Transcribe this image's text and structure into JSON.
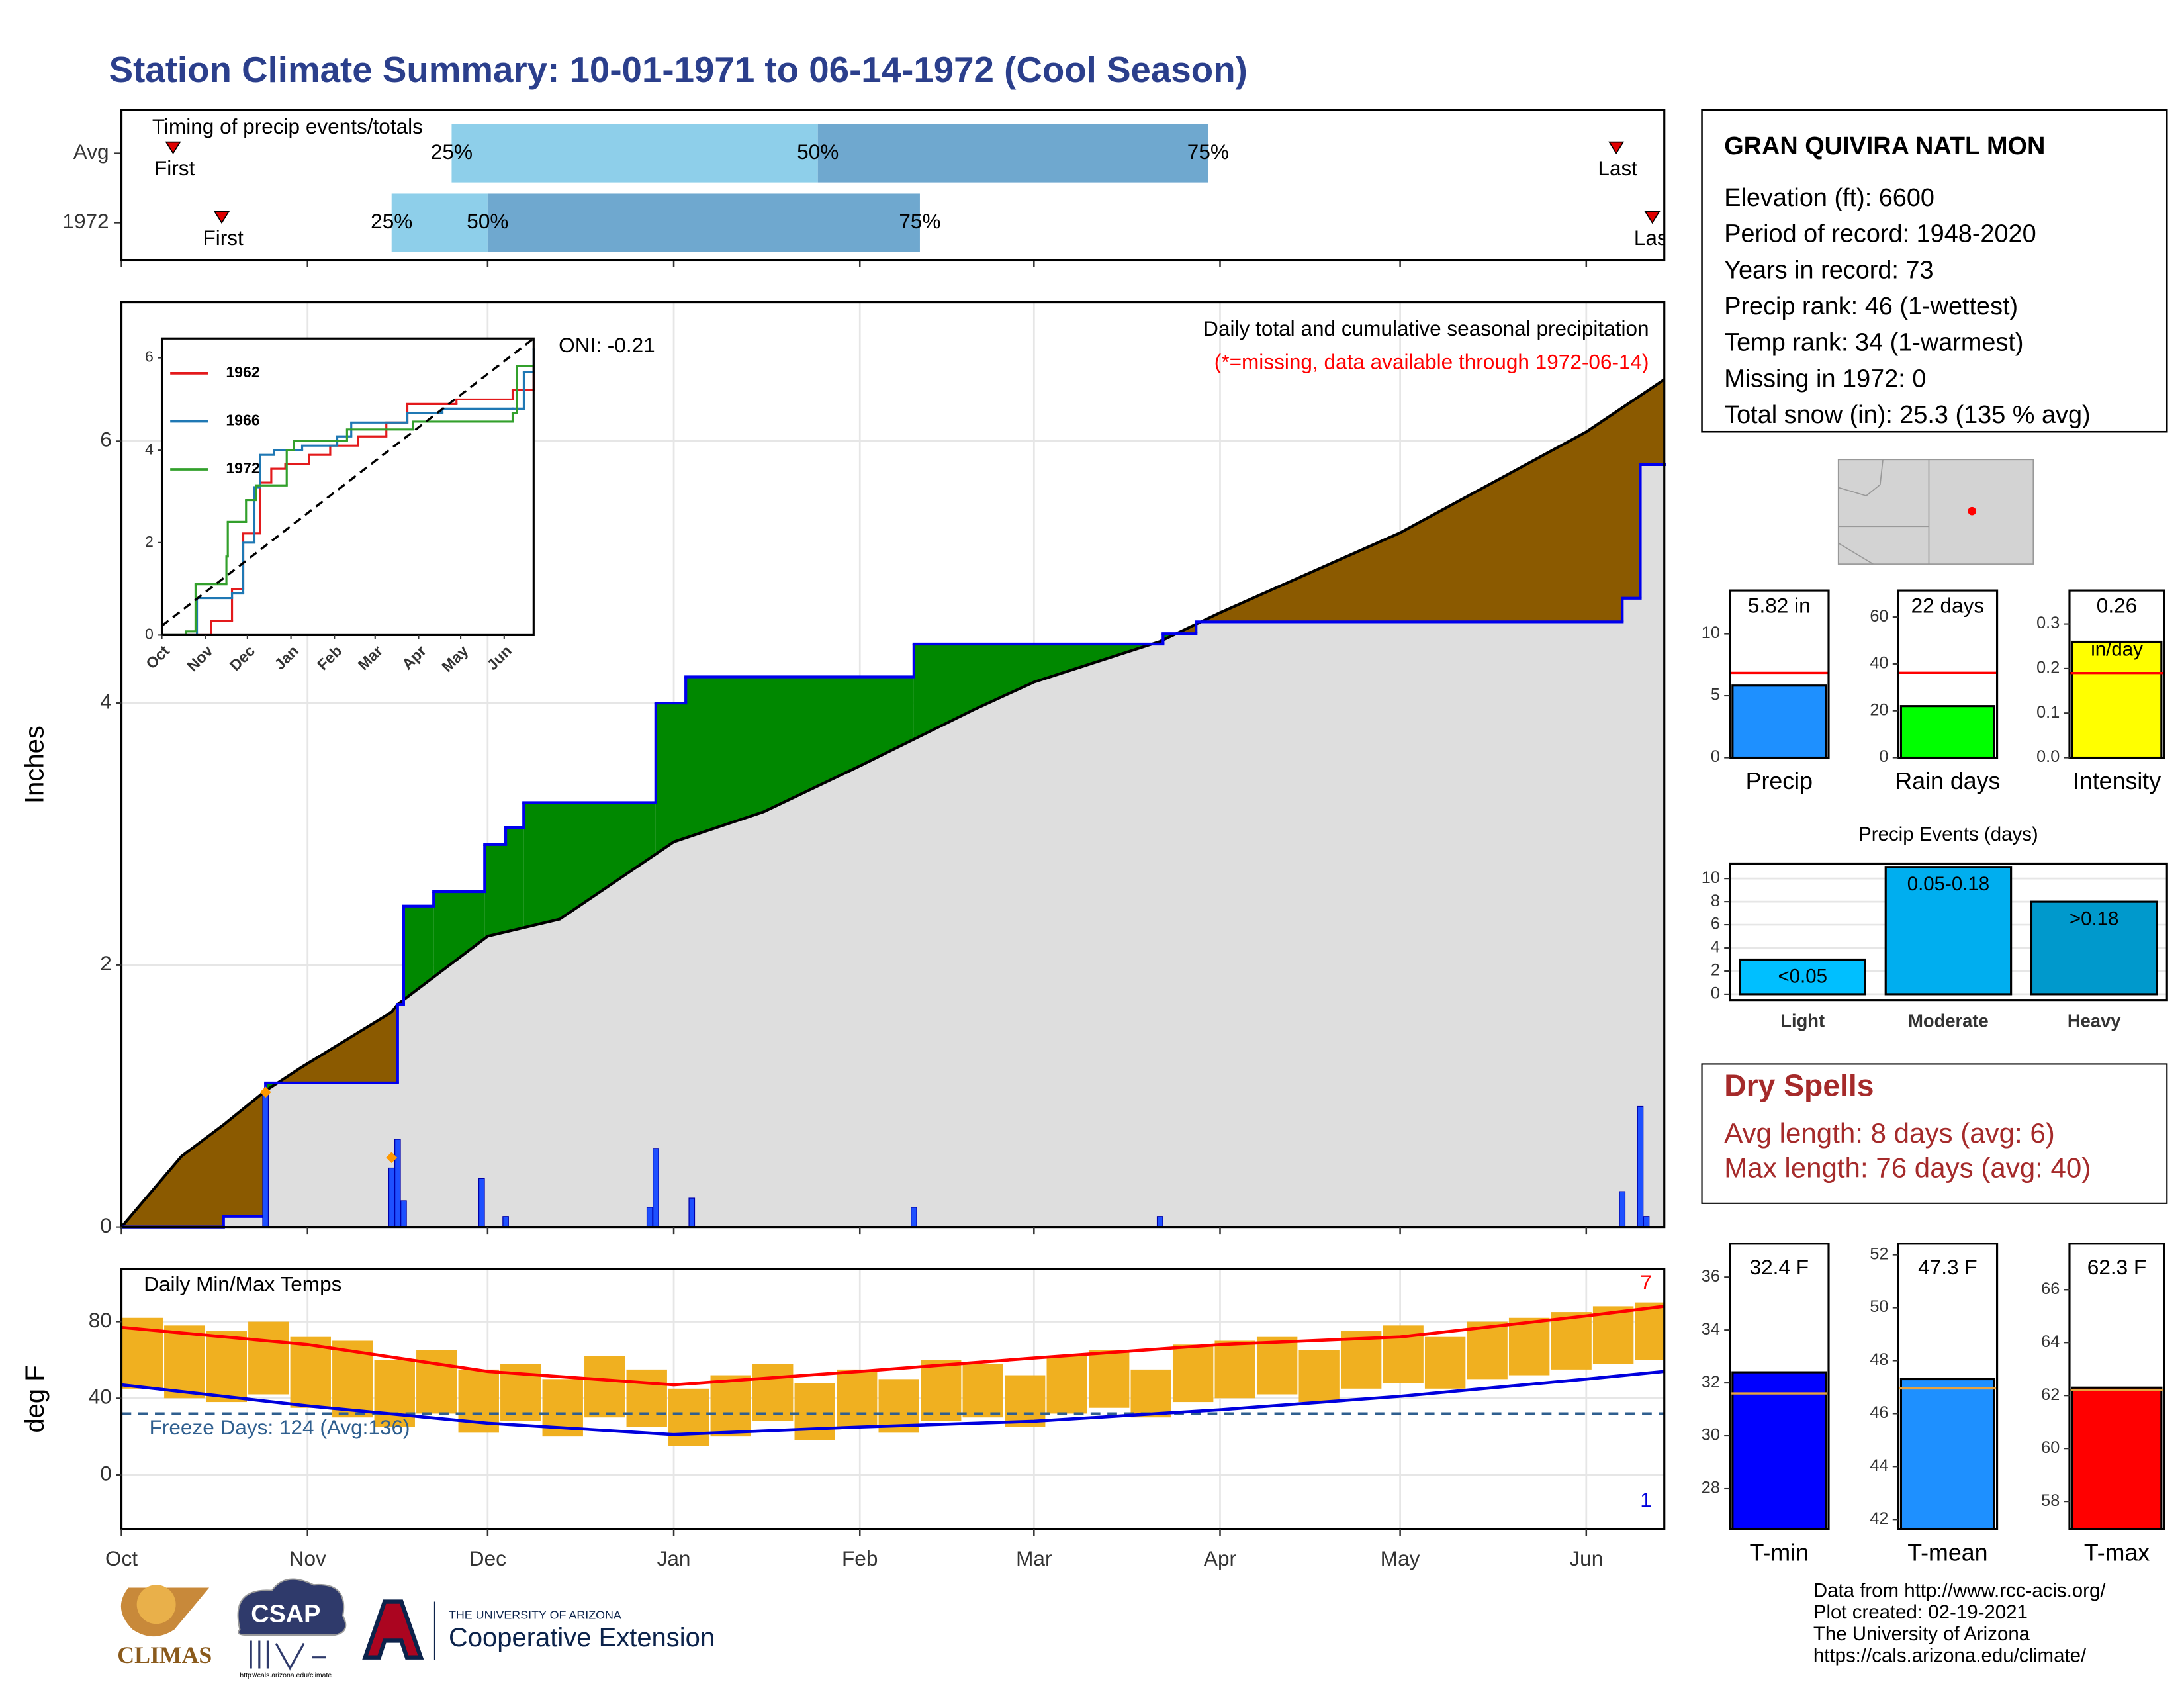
{
  "title": "Station Climate Summary: 10-01-1971 to 06-14-1972 (Cool Season)",
  "chart_data": [
    {
      "type": "timeline",
      "title": "Timing of precip events/totals",
      "categories": [
        "Avg",
        "1972"
      ],
      "xlim": [
        0,
        257
      ],
      "xticks": [
        0,
        31,
        61,
        92,
        123,
        152,
        183,
        213,
        244
      ],
      "quartile_labels": [
        "25%",
        "50%",
        "75%"
      ],
      "first_label": "First",
      "last_label": "Last",
      "colors": [
        "#8ecfea",
        "#6fa8cf"
      ],
      "marker_color": "#e00000",
      "rows": [
        {
          "first": 8.6,
          "quartiles": [
            55,
            116,
            181
          ],
          "last": 249
        },
        {
          "first": 16.7,
          "quartiles": [
            45,
            61,
            133
          ],
          "last": 255
        }
      ]
    },
    {
      "type": "area",
      "y_label": "Inches",
      "annotations": [
        "Daily total and cumulative seasonal precipitation",
        "(*=missing, data available through 1972-06-14)",
        "ONI: -0.21"
      ],
      "xlim": [
        0,
        257
      ],
      "xticks": [
        0,
        31,
        61,
        92,
        123,
        152,
        183,
        213,
        244
      ],
      "ylim": [
        0,
        7.06
      ],
      "yticks": [
        0,
        2,
        4,
        6
      ],
      "grid": true,
      "colors": {
        "above": "#008800",
        "below": "#8b5a00",
        "base": "#dedede",
        "average": "#000000",
        "season": "#0000ee",
        "daily": "#1e50ff",
        "snow": "#ff9900"
      },
      "average": {
        "x": [
          0,
          10,
          17,
          24,
          30,
          45,
          46,
          61,
          73,
          92,
          107,
          123,
          142,
          152,
          173,
          183,
          213,
          244,
          257
        ],
        "values": [
          0,
          0.54,
          0.78,
          1.04,
          1.22,
          1.64,
          1.7,
          2.22,
          2.35,
          2.94,
          3.17,
          3.52,
          3.95,
          4.16,
          4.47,
          4.69,
          5.3,
          6.07,
          6.47
        ]
      },
      "season": {
        "x": [
          0,
          17,
          24,
          46,
          47,
          52,
          60.5,
          64,
          67,
          89,
          94,
          132,
          173.5,
          179,
          250,
          253,
          257
        ],
        "values": [
          0,
          0.08,
          1.1,
          1.7,
          2.45,
          2.56,
          2.92,
          3.05,
          3.24,
          4.0,
          4.2,
          4.45,
          4.53,
          4.62,
          4.8,
          5.82,
          5.82
        ]
      },
      "daily": {
        "x": [
          24,
          45,
          46,
          47,
          60,
          64,
          88,
          89,
          95,
          132,
          173,
          250,
          253,
          254
        ],
        "values": [
          1.03,
          0.45,
          0.67,
          0.2,
          0.37,
          0.08,
          0.15,
          0.6,
          0.22,
          0.15,
          0.08,
          0.27,
          0.92,
          0.08
        ]
      },
      "snow": {
        "x": [
          24,
          45
        ],
        "values": [
          1.03,
          0.53
        ]
      }
    },
    {
      "type": "line",
      "xlim": [
        0,
        265
      ],
      "xticks": [
        {
          "value": 0,
          "label": "Oct"
        },
        {
          "value": 31,
          "label": "Nov"
        },
        {
          "value": 61,
          "label": "Dec"
        },
        {
          "value": 92,
          "label": "Jan"
        },
        {
          "value": 123,
          "label": "Feb"
        },
        {
          "value": 152,
          "label": "Mar"
        },
        {
          "value": 183,
          "label": "Apr"
        },
        {
          "value": 213,
          "label": "May"
        },
        {
          "value": 244,
          "label": "Jun"
        }
      ],
      "ylim": [
        0,
        6.42
      ],
      "yticks": [
        0,
        2,
        4,
        6
      ],
      "average": {
        "x": [
          0,
          265
        ],
        "values": [
          0.2,
          6.42
        ],
        "color": "#000000"
      },
      "series": [
        {
          "name": "1962",
          "color": "#e31a1c",
          "x": [
            0,
            35,
            50,
            58,
            70,
            78,
            88,
            105,
            120,
            140,
            160,
            175,
            210,
            250,
            265
          ],
          "values": [
            0,
            0.3,
            1.0,
            2.2,
            3.3,
            3.6,
            3.7,
            3.9,
            4.1,
            4.3,
            4.6,
            5.0,
            5.1,
            5.3,
            5.8
          ]
        },
        {
          "name": "1966",
          "color": "#1f78b4",
          "x": [
            0,
            25,
            50,
            58,
            66,
            70,
            80,
            100,
            125,
            135,
            175,
            200,
            250,
            258,
            265
          ],
          "values": [
            0,
            0.8,
            0.9,
            2.0,
            3.2,
            3.9,
            4.0,
            4.1,
            4.3,
            4.6,
            4.8,
            4.9,
            4.9,
            5.7,
            6.2
          ]
        },
        {
          "name": "1972",
          "color": "#33a02c",
          "x": [
            0,
            17,
            24,
            46,
            47,
            60,
            67,
            89,
            94,
            132,
            179,
            250,
            253,
            265
          ],
          "values": [
            0,
            0.08,
            1.1,
            1.7,
            2.45,
            2.92,
            3.24,
            4.0,
            4.2,
            4.45,
            4.62,
            4.8,
            5.82,
            5.82
          ]
        }
      ]
    },
    {
      "type": "range",
      "title": "Daily Min/Max Temps",
      "y_label": "deg F",
      "freeze_label": "Freeze Days: 124 (Avg:136)",
      "freeze_line": 32,
      "record_high_count": 7,
      "record_low_count": 1,
      "xlim": [
        0,
        257
      ],
      "xticks": [
        {
          "value": 0,
          "label": "Oct"
        },
        {
          "value": 31,
          "label": "Nov"
        },
        {
          "value": 61,
          "label": "Dec"
        },
        {
          "value": 92,
          "label": "Jan"
        },
        {
          "value": 123,
          "label": "Feb"
        },
        {
          "value": 152,
          "label": "Mar"
        },
        {
          "value": 183,
          "label": "Apr"
        },
        {
          "value": 213,
          "label": "May"
        },
        {
          "value": 244,
          "label": "Jun"
        }
      ],
      "ylim": [
        -28.4,
        107.6
      ],
      "yticks": [
        0,
        40,
        80
      ],
      "grid": true,
      "colors": {
        "bars": "#f0b020",
        "avg_max": "#ff0000",
        "avg_min": "#0000dd",
        "freeze": "#2f5f8f"
      },
      "x": [
        0,
        7,
        14,
        21,
        28,
        35,
        42,
        49,
        56,
        63,
        70,
        77,
        84,
        91,
        98,
        105,
        112,
        119,
        126,
        133,
        140,
        147,
        154,
        161,
        168,
        175,
        182,
        189,
        196,
        203,
        210,
        217,
        224,
        231,
        238,
        245,
        252
      ],
      "high": [
        82,
        78,
        75,
        80,
        72,
        70,
        60,
        65,
        55,
        58,
        50,
        62,
        55,
        45,
        52,
        58,
        48,
        55,
        50,
        60,
        58,
        52,
        62,
        65,
        55,
        68,
        70,
        72,
        65,
        75,
        78,
        72,
        80,
        82,
        85,
        88,
        90
      ],
      "low": [
        45,
        40,
        38,
        42,
        35,
        30,
        25,
        32,
        22,
        28,
        20,
        30,
        25,
        15,
        20,
        28,
        18,
        25,
        22,
        28,
        30,
        25,
        32,
        35,
        30,
        38,
        40,
        42,
        38,
        45,
        48,
        45,
        50,
        52,
        55,
        58,
        60
      ],
      "avg_x": [
        0,
        31,
        61,
        92,
        123,
        152,
        183,
        213,
        244,
        257
      ],
      "avg_max": [
        77,
        68,
        54,
        47,
        54,
        61,
        68,
        72,
        83,
        88
      ],
      "avg_min": [
        47,
        36,
        27,
        21,
        25,
        28,
        34,
        41,
        50,
        54
      ]
    },
    {
      "type": "bar",
      "x_label": "Precip",
      "value": 5.82,
      "value_label": "5.82 in",
      "average": 6.85,
      "ylim": [
        0,
        13.5
      ],
      "yticks": [
        0,
        5,
        10
      ],
      "color": "#1e90ff",
      "average_color": "#ff0000"
    },
    {
      "type": "bar",
      "x_label": "Rain days",
      "value": 22,
      "value_label": "22 days",
      "average": 36.2,
      "ylim": [
        0,
        71.3
      ],
      "yticks": [
        0,
        20,
        40,
        60
      ],
      "color": "#00ff00",
      "average_color": "#ff0000"
    },
    {
      "type": "bar",
      "x_label": "Intensity",
      "value": 0.26,
      "value_label": "0.26",
      "unit_label": "in/day",
      "average": 0.19,
      "ylim": [
        0,
        0.375
      ],
      "yticks": [
        {
          "value": 0,
          "label": "0.0"
        },
        0.1,
        0.2,
        0.3
      ],
      "color": "#ffff00",
      "average_color": "#ff0000"
    },
    {
      "type": "bar",
      "title": "Precip Events (days)",
      "categories": [
        "Light",
        "Moderate",
        "Heavy"
      ],
      "values": [
        3,
        11,
        8
      ],
      "bin_labels": [
        "<0.05",
        "0.05-0.18",
        ">0.18"
      ],
      "colors": [
        "#00bfff",
        "#00aeef",
        "#0099cc"
      ],
      "ylim": [
        -0.5,
        11.3
      ],
      "yticks": [
        0,
        2,
        4,
        6,
        8,
        10
      ],
      "grid": true
    },
    {
      "type": "bar",
      "x_label": "T-min",
      "value": 32.4,
      "value_label": "32.4 F",
      "average": 31.6,
      "ylim": [
        26.47,
        37.26
      ],
      "yticks": [
        28,
        30,
        32,
        34,
        36
      ],
      "color": "#0000ff",
      "average_color": "#e8a33d"
    },
    {
      "type": "bar",
      "x_label": "T-mean",
      "value": 47.3,
      "value_label": "47.3 F",
      "average": 46.95,
      "ylim": [
        41.63,
        52.42
      ],
      "yticks": [
        42,
        44,
        46,
        48,
        50,
        52
      ],
      "color": "#1e90ff",
      "average_color": "#e8a33d"
    },
    {
      "type": "bar",
      "x_label": "T-max",
      "value": 62.3,
      "value_label": "62.3 F",
      "average": 62.2,
      "ylim": [
        56.95,
        67.74
      ],
      "yticks": [
        58,
        60,
        62,
        64,
        66
      ],
      "color": "#ff0000",
      "average_color": "#e8a33d"
    }
  ],
  "station": {
    "name": "GRAN QUIVIRA NATL MON",
    "lines": [
      "Elevation (ft): 6600",
      "Period of record: 1948-2020",
      "Years in record: 73",
      "Precip rank: 46 (1-wettest)",
      "Temp rank: 34 (1-warmest)",
      "Missing in 1972: 0",
      "Total snow (in): 25.3 (135 % avg)"
    ]
  },
  "dry_spells": {
    "title": "Dry Spells",
    "lines": [
      "Avg length: 8 days (avg: 6)",
      "Max length: 76 days (avg: 40)"
    ]
  },
  "footer": {
    "lines": [
      "Data from http://www.rcc-acis.org/",
      "Plot created: 02-19-2021",
      "The University of Arizona",
      "https://cals.arizona.edu/climate/"
    ]
  },
  "logos": {
    "climas": "CLIMAS",
    "csap": "CSAP",
    "csap_url": "http://cals.arizona.edu/climate",
    "university": "THE UNIVERSITY OF ARIZONA",
    "extension": "Cooperative Extension"
  }
}
